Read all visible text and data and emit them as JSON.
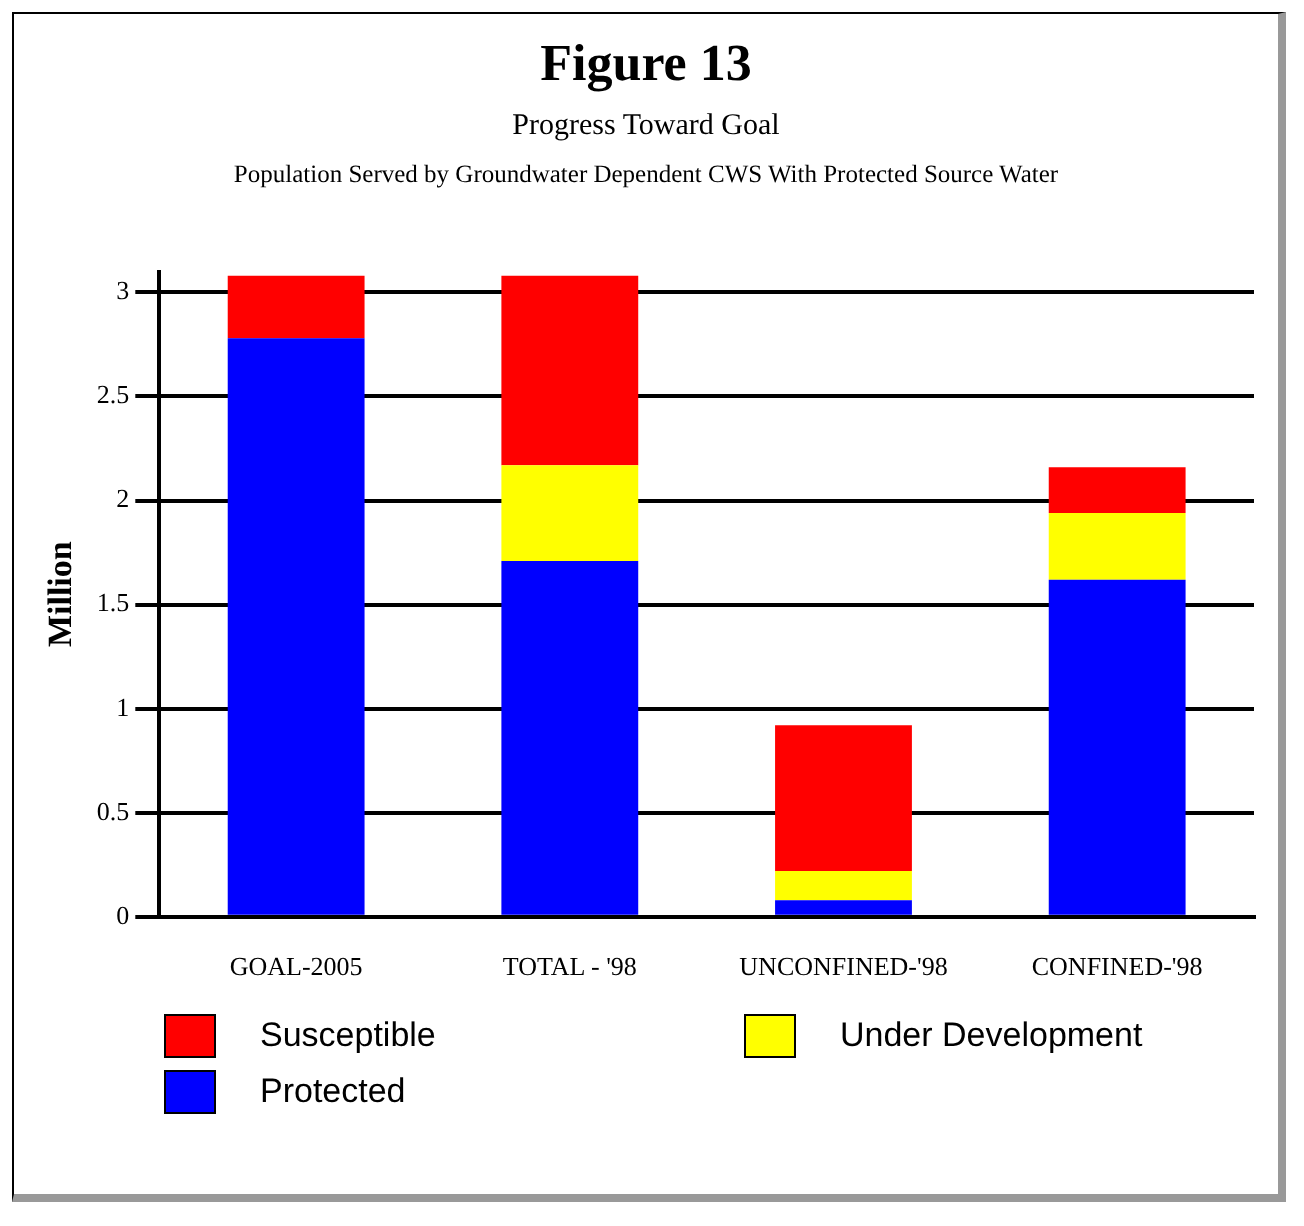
{
  "chart_data": {
    "type": "bar",
    "title": "Figure 13",
    "subtitle": "Progress Toward Goal",
    "annotations": [
      "Population Served by Groundwater Dependent CWS With Protected Source Water"
    ],
    "ylabel": "Million",
    "categories": [
      "GOAL-2005",
      "TOTAL - '98",
      "UNCONFINED-'98",
      "CONFINED-'98"
    ],
    "stacked": true,
    "series": [
      {
        "name": "Protected",
        "color": "#0000ff",
        "values": [
          2.78,
          1.71,
          0.08,
          1.62
        ]
      },
      {
        "name": "Under Development",
        "color": "#ffff00",
        "values": [
          0,
          0.46,
          0.14,
          0.32
        ]
      },
      {
        "name": "Susceptible",
        "color": "#ff0000",
        "values": [
          0.3,
          0.91,
          0.7,
          0.22
        ]
      }
    ],
    "ylim": [
      0,
      3.1
    ],
    "yticks": [
      0,
      0.5,
      1,
      1.5,
      2,
      2.5,
      3
    ],
    "grid": "y",
    "legend": "bottom"
  }
}
